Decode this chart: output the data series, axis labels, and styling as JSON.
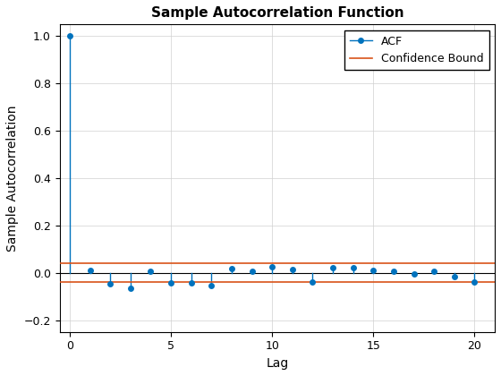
{
  "title": "Sample Autocorrelation Function",
  "xlabel": "Lag",
  "ylabel": "Sample Autocorrelation",
  "acf_values": [
    1.0,
    0.012,
    -0.045,
    -0.065,
    0.005,
    -0.042,
    -0.042,
    -0.055,
    0.018,
    0.007,
    0.025,
    0.015,
    -0.038,
    0.022,
    0.02,
    0.01,
    0.005,
    -0.005,
    0.005,
    -0.015,
    -0.038
  ],
  "lags": [
    0,
    1,
    2,
    3,
    4,
    5,
    6,
    7,
    8,
    9,
    10,
    11,
    12,
    13,
    14,
    15,
    16,
    17,
    18,
    19,
    20
  ],
  "confidence_bound": 0.04,
  "stem_color": "#0072BD",
  "marker_color": "#0072BD",
  "confidence_color": "#D95319",
  "baseline_color": "#000000",
  "xlim": [
    -0.5,
    21
  ],
  "ylim": [
    -0.25,
    1.05
  ],
  "yticks": [
    -0.2,
    0.0,
    0.2,
    0.4,
    0.6,
    0.8,
    1.0
  ],
  "xticks": [
    0,
    5,
    10,
    15,
    20
  ],
  "grid": true,
  "legend_labels": [
    "ACF",
    "Confidence Bound"
  ],
  "figsize": [
    5.6,
    4.2
  ],
  "dpi": 100,
  "title_fontsize": 11,
  "label_fontsize": 10,
  "tick_fontsize": 9,
  "legend_fontsize": 9,
  "background_color": "#FFFFFF"
}
